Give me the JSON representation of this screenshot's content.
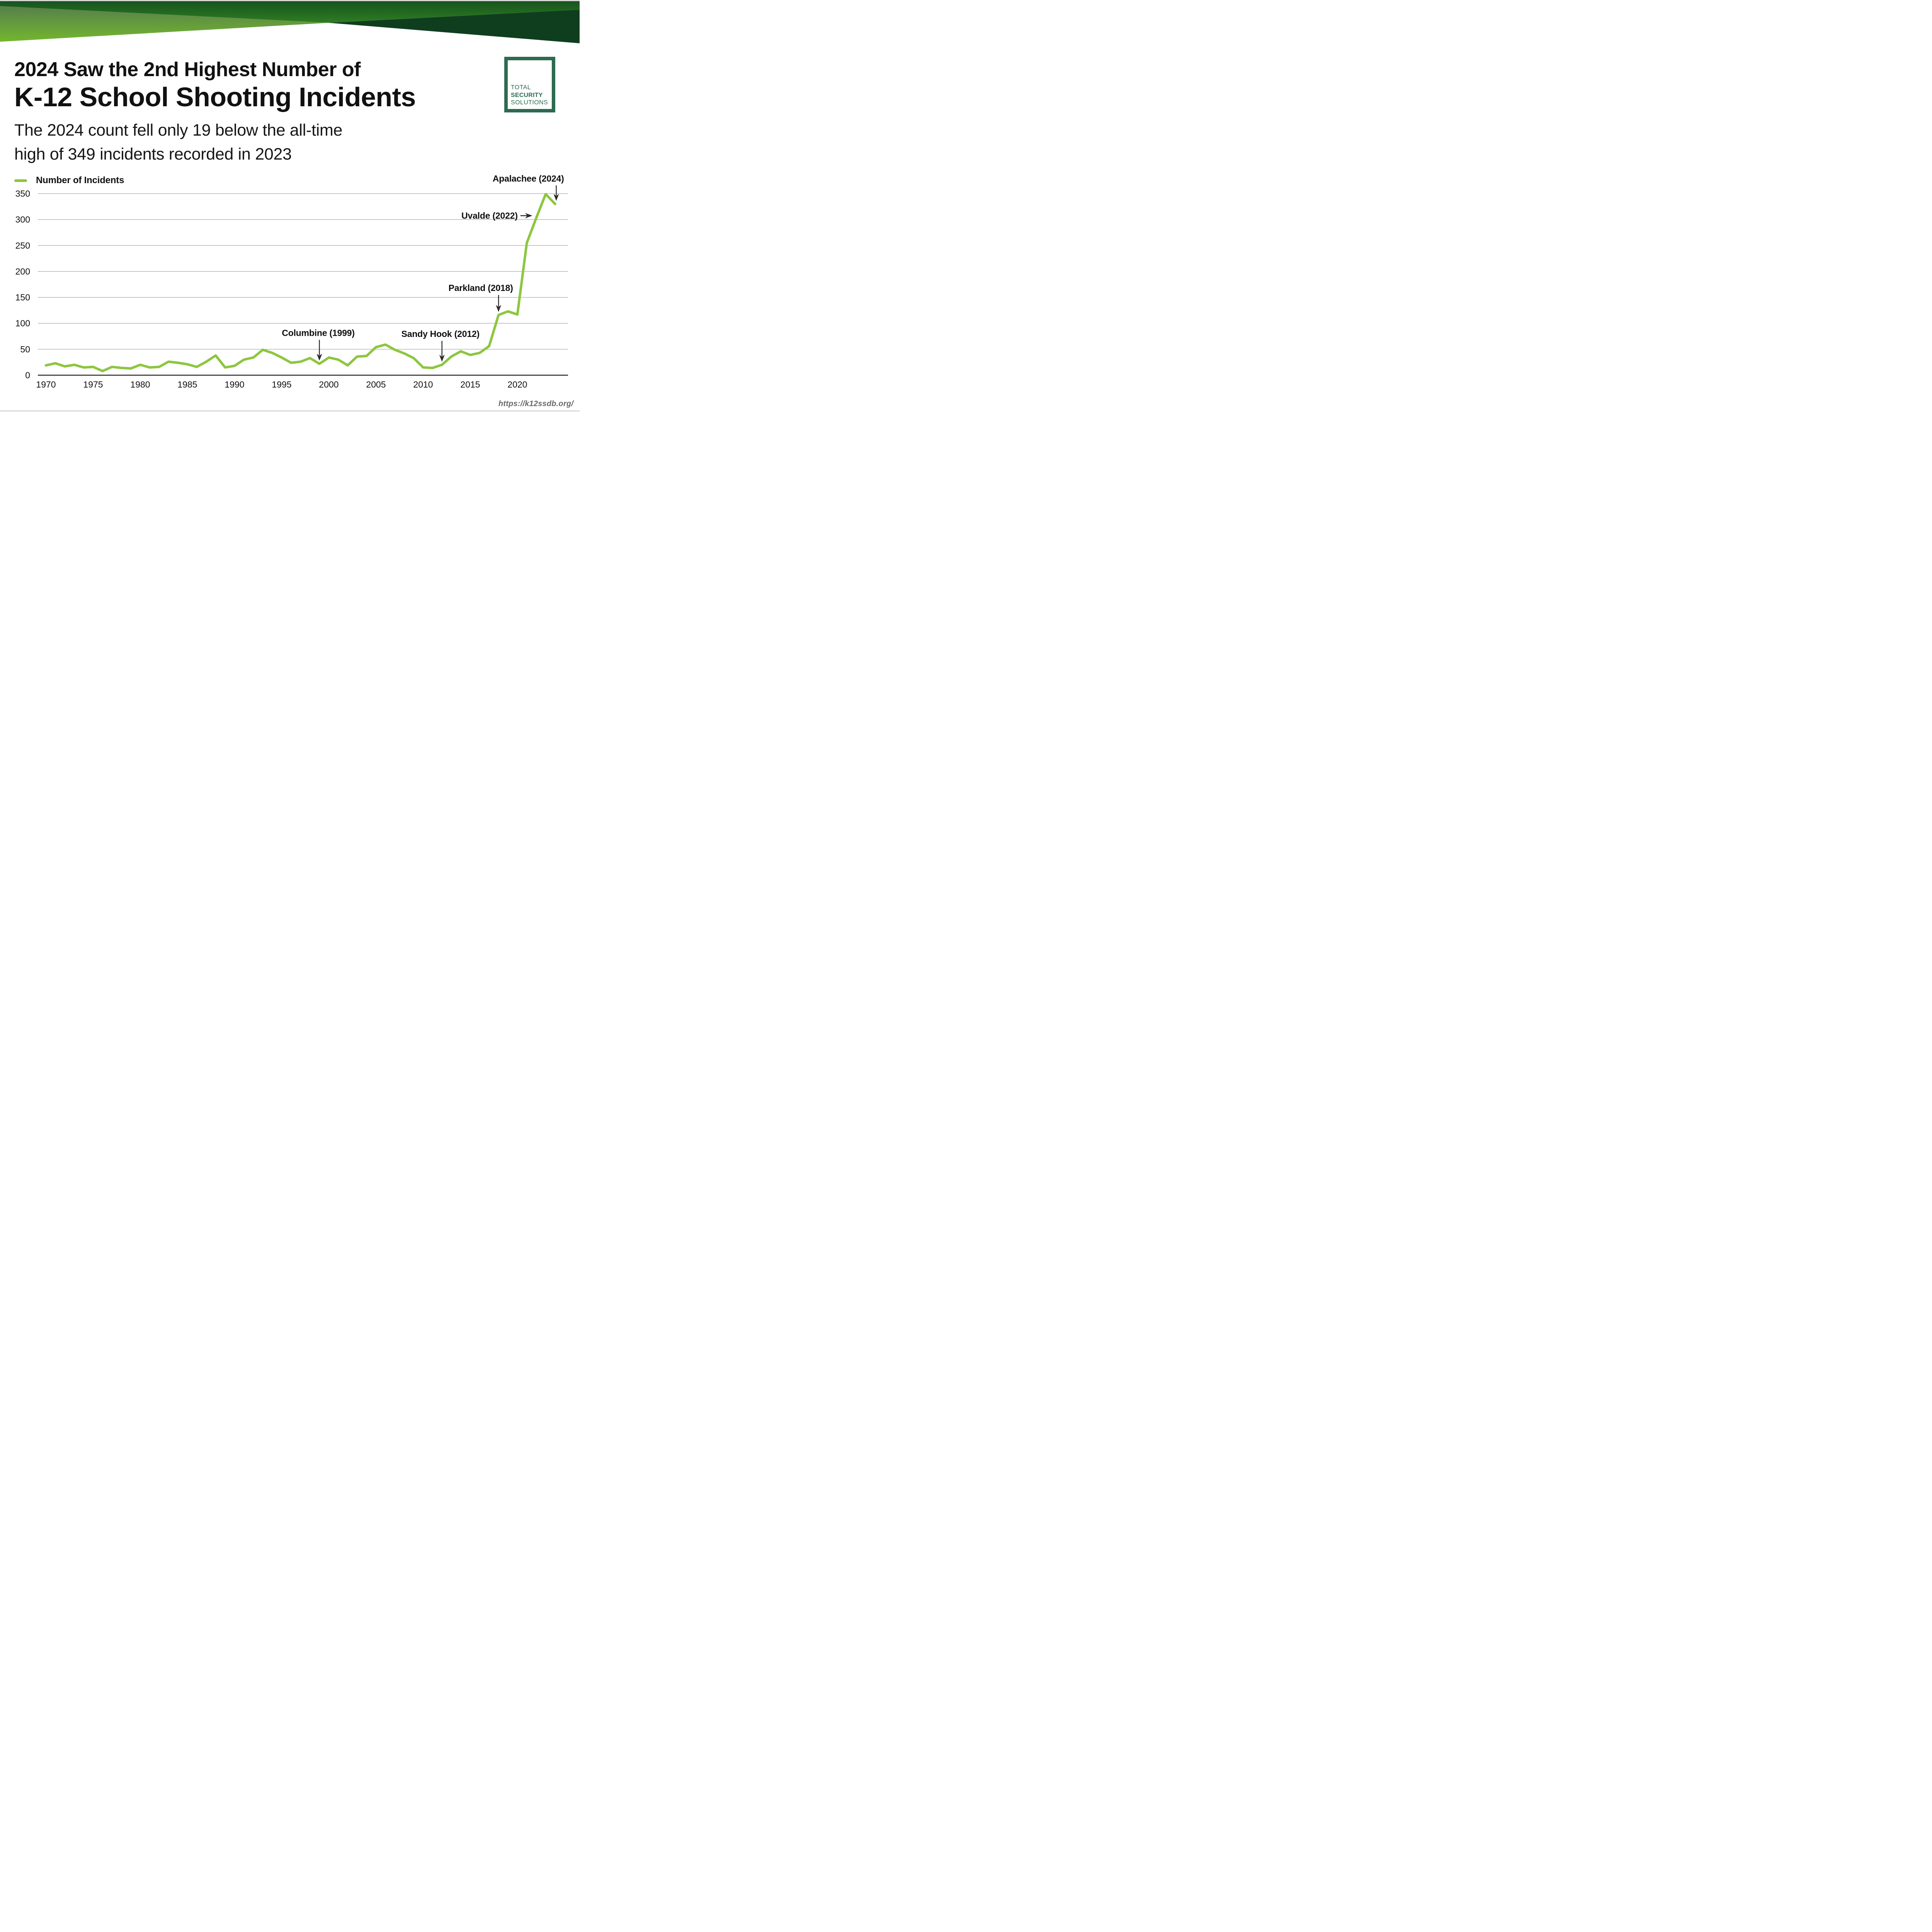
{
  "header": {
    "title_line1": "2024 Saw the 2nd Highest Number of",
    "title_line2": "K-12 School Shooting Incidents",
    "subtitle_line1": "The 2024 count fell only 19 below the all-time",
    "subtitle_line2": "high of 349 incidents recorded in 2023"
  },
  "logo": {
    "line1": "TOTAL",
    "line2": "SECURITY",
    "line3": "SOLUTIONS"
  },
  "legend": {
    "label": "Number of Incidents"
  },
  "footer": {
    "source_url": "https://k12ssdb.org/"
  },
  "colors": {
    "accent_green": "#8DC63F",
    "banner_dark": "#0f3e1f",
    "banner_mid_top": "#16511d",
    "banner_mid_bottom": "#2e7d23",
    "banner_light_top": "#56804b",
    "banner_light_bottom": "#74b62e",
    "logo_green": "#2d6b50",
    "grid_gray": "#8f8f8f",
    "axis_dark": "#222222",
    "footer_gray": "#6a6a6a"
  },
  "chart_data": {
    "type": "line",
    "title": "",
    "xlabel": "",
    "ylabel": "",
    "legend_entries": [
      "Number of Incidents"
    ],
    "grid": "horizontal",
    "ylim": [
      0,
      350
    ],
    "xlim": [
      1970,
      2024
    ],
    "y_ticks": [
      0,
      50,
      100,
      150,
      200,
      250,
      300,
      350
    ],
    "x_ticks": [
      1970,
      1975,
      1980,
      1985,
      1990,
      1995,
      2000,
      2005,
      2010,
      2015,
      2020
    ],
    "series": [
      {
        "name": "Number of Incidents",
        "color": "#8DC63F",
        "x": [
          1970,
          1971,
          1972,
          1973,
          1974,
          1975,
          1976,
          1977,
          1978,
          1979,
          1980,
          1981,
          1982,
          1983,
          1984,
          1985,
          1986,
          1987,
          1988,
          1989,
          1990,
          1991,
          1992,
          1993,
          1994,
          1995,
          1996,
          1997,
          1998,
          1999,
          2000,
          2001,
          2002,
          2003,
          2004,
          2005,
          2006,
          2007,
          2008,
          2009,
          2010,
          2011,
          2012,
          2013,
          2014,
          2015,
          2016,
          2017,
          2018,
          2019,
          2020,
          2021,
          2022,
          2023,
          2024
        ],
        "values": [
          19,
          23,
          17,
          20,
          15,
          16,
          8,
          16,
          14,
          13,
          20,
          15,
          16,
          26,
          24,
          21,
          16,
          26,
          38,
          15,
          18,
          30,
          34,
          49,
          43,
          34,
          24,
          26,
          33,
          22,
          34,
          30,
          19,
          36,
          37,
          54,
          59,
          49,
          42,
          33,
          15,
          14,
          20,
          36,
          46,
          39,
          43,
          56,
          116,
          123,
          117,
          255,
          303,
          349,
          330
        ]
      }
    ],
    "annotations": [
      {
        "label": "Columbine (1999)",
        "year": 1999,
        "value": 22,
        "arrow": "down"
      },
      {
        "label": "Sandy Hook (2012)",
        "year": 2012,
        "value": 20,
        "arrow": "down"
      },
      {
        "label": "Parkland (2018)",
        "year": 2018,
        "value": 116,
        "arrow": "down"
      },
      {
        "label": "Uvalde (2022)",
        "year": 2022,
        "value": 303,
        "arrow": "right"
      },
      {
        "label": "Apalachee (2024)",
        "year": 2024,
        "value": 330,
        "arrow": "down"
      }
    ]
  }
}
